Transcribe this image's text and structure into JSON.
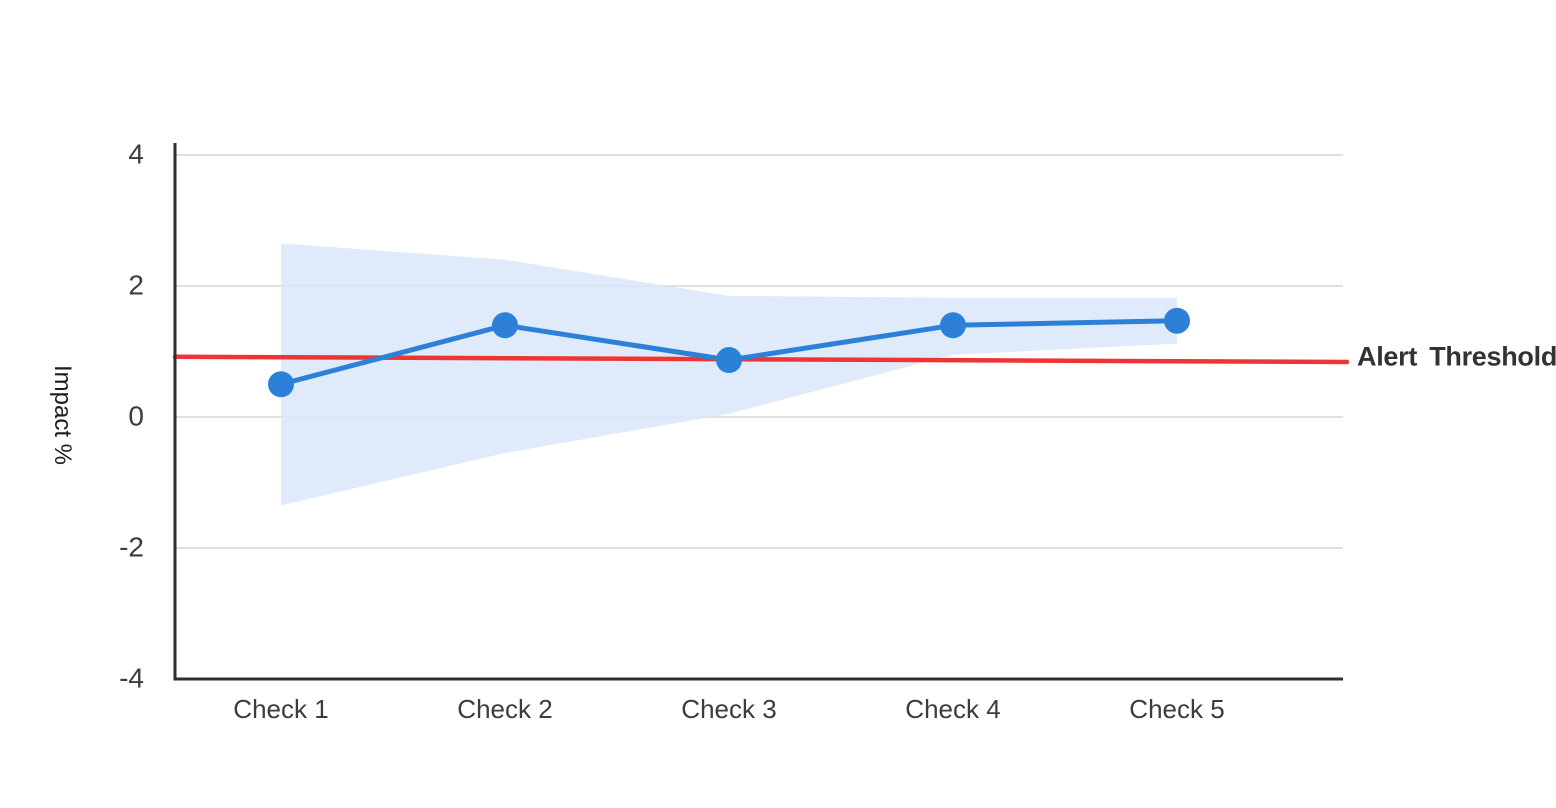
{
  "chart_data": {
    "type": "line",
    "title": "",
    "ylabel": "Impact %",
    "xlabel": "",
    "categories": [
      "Check 1",
      "Check 2",
      "Check 3",
      "Check 4",
      "Check 5"
    ],
    "series": [
      {
        "name": "Impact",
        "color": "#2d80d8",
        "line_width": 5,
        "marker_radius": 13,
        "values": [
          0.5,
          1.4,
          0.87,
          1.4,
          1.47
        ]
      }
    ],
    "band": {
      "name": "confidence-interval",
      "color": "#d9e7fa",
      "opacity": 0.85,
      "upper": [
        2.65,
        2.4,
        1.85,
        1.82,
        1.82
      ],
      "lower": [
        -1.35,
        -0.55,
        0.05,
        0.95,
        1.12
      ]
    },
    "threshold": {
      "label": "Alert Threshold",
      "color": "#ee3434",
      "label_color": "#333333",
      "start_value": 0.92,
      "end_value": 0.84,
      "line_width": 4.5
    },
    "ylim": [
      -4,
      4
    ],
    "yticks": [
      4,
      2,
      0,
      -2,
      -4
    ],
    "ytick_labels": [
      "4",
      "2",
      "0",
      "-2",
      "-4"
    ],
    "grid": true,
    "legend": "none",
    "grid_color": "#e0e0e0",
    "axis_color": "#2e2e2e",
    "tick_label_color": "#3c3c3c",
    "background": "#ffffff"
  }
}
